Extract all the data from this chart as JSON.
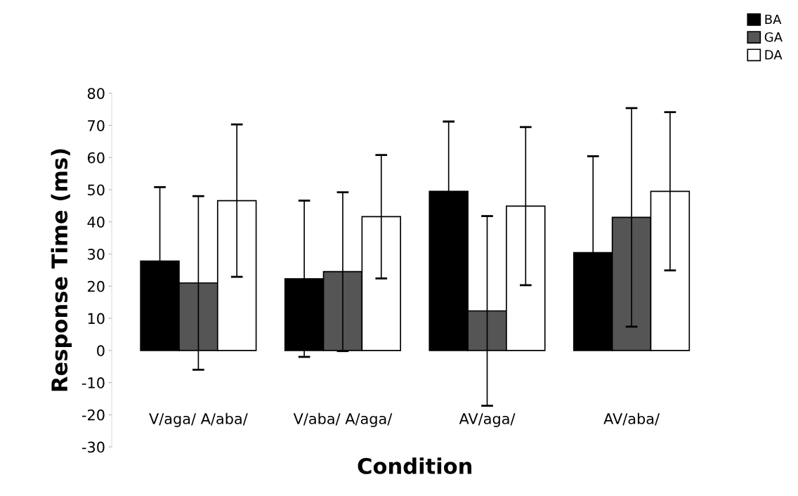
{
  "chart_data": {
    "type": "bar",
    "xlabel": "Condition",
    "ylabel": "Response Time (ms)",
    "categories": [
      "V/aga/ A/aba/",
      "V/aba/ A/aga/",
      "AV/aga/",
      "AV/aba/"
    ],
    "series": [
      {
        "name": "BA",
        "color": "#000000",
        "values": [
          27.8,
          22.3,
          49.5,
          30.4
        ],
        "errors": [
          23,
          24.3,
          21.7,
          30
        ]
      },
      {
        "name": "GA",
        "color": "#555555",
        "values": [
          21.0,
          24.5,
          12.3,
          41.4
        ],
        "errors": [
          27,
          24.7,
          29.5,
          34
        ]
      },
      {
        "name": "DA",
        "color": "#ffffff",
        "values": [
          46.6,
          41.6,
          44.9,
          49.5
        ],
        "errors": [
          23.7,
          19.2,
          24.6,
          24.6
        ]
      }
    ],
    "ylim": [
      -30,
      80
    ],
    "yticks": [
      -30,
      -20,
      -10,
      0,
      10,
      20,
      30,
      40,
      50,
      60,
      70,
      80
    ],
    "grid": false,
    "legend": "top right"
  }
}
